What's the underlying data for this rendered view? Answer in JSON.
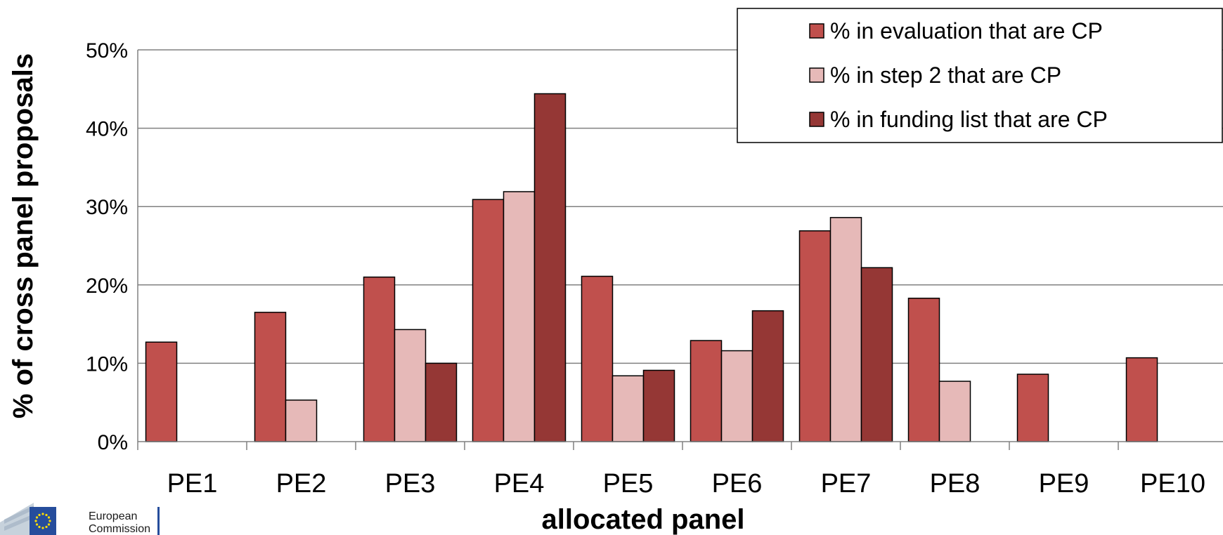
{
  "chart_data": {
    "type": "bar",
    "title": "",
    "xlabel": "allocated panel",
    "ylabel": "% of cross panel proposals",
    "categories": [
      "PE1",
      "PE2",
      "PE3",
      "PE4",
      "PE5",
      "PE6",
      "PE7",
      "PE8",
      "PE9",
      "PE10"
    ],
    "series": [
      {
        "name": "% in evaluation that are CP",
        "color": "#c0504d",
        "values": [
          12.7,
          16.5,
          21.0,
          30.9,
          21.1,
          12.9,
          26.9,
          18.3,
          8.6,
          10.7
        ]
      },
      {
        "name": "% in step 2 that are CP",
        "color": "#e6b9b8",
        "values": [
          0,
          5.3,
          14.3,
          31.9,
          8.4,
          11.6,
          28.6,
          7.7,
          0,
          0
        ]
      },
      {
        "name": "% in funding list that are CP",
        "color": "#953735",
        "values": [
          0,
          0,
          10.0,
          44.4,
          9.1,
          16.7,
          22.2,
          0,
          0,
          0
        ]
      }
    ],
    "ylim": [
      0,
      50
    ],
    "yticks": [
      0,
      10,
      20,
      30,
      40,
      50
    ],
    "ytick_labels": [
      "0%",
      "10%",
      "20%",
      "30%",
      "40%",
      "50%"
    ],
    "grid": true,
    "legend_position": "top-right"
  },
  "logo": {
    "text_line1": "European",
    "text_line2": "Commission"
  }
}
